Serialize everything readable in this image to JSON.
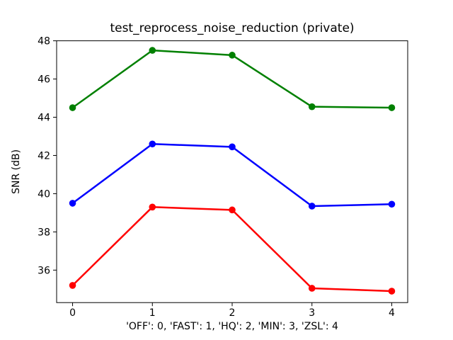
{
  "figure": {
    "background": "#ffffff",
    "spine_color": "#000000"
  },
  "chart_data": {
    "type": "line",
    "title": "test_reprocess_noise_reduction (private)",
    "xlabel": "'OFF': 0, 'FAST': 1, 'HQ': 2, 'MIN': 3, 'ZSL': 4",
    "ylabel": "SNR (dB)",
    "x": [
      0,
      1,
      2,
      3,
      4
    ],
    "xticks": [
      0,
      1,
      2,
      3,
      4
    ],
    "yticks": [
      36,
      38,
      40,
      42,
      44,
      46,
      48
    ],
    "xlim": [
      -0.2,
      4.2
    ],
    "ylim": [
      34.3,
      48.0
    ],
    "grid": false,
    "legend": null,
    "marker": "circle",
    "series": [
      {
        "name": "green",
        "color": "#008000",
        "values": [
          44.5,
          47.5,
          47.25,
          44.55,
          44.5
        ]
      },
      {
        "name": "blue",
        "color": "#0000ff",
        "values": [
          39.5,
          42.6,
          42.45,
          39.35,
          39.45
        ]
      },
      {
        "name": "red",
        "color": "#ff0000",
        "values": [
          35.2,
          39.3,
          39.15,
          35.05,
          34.9
        ]
      }
    ]
  }
}
